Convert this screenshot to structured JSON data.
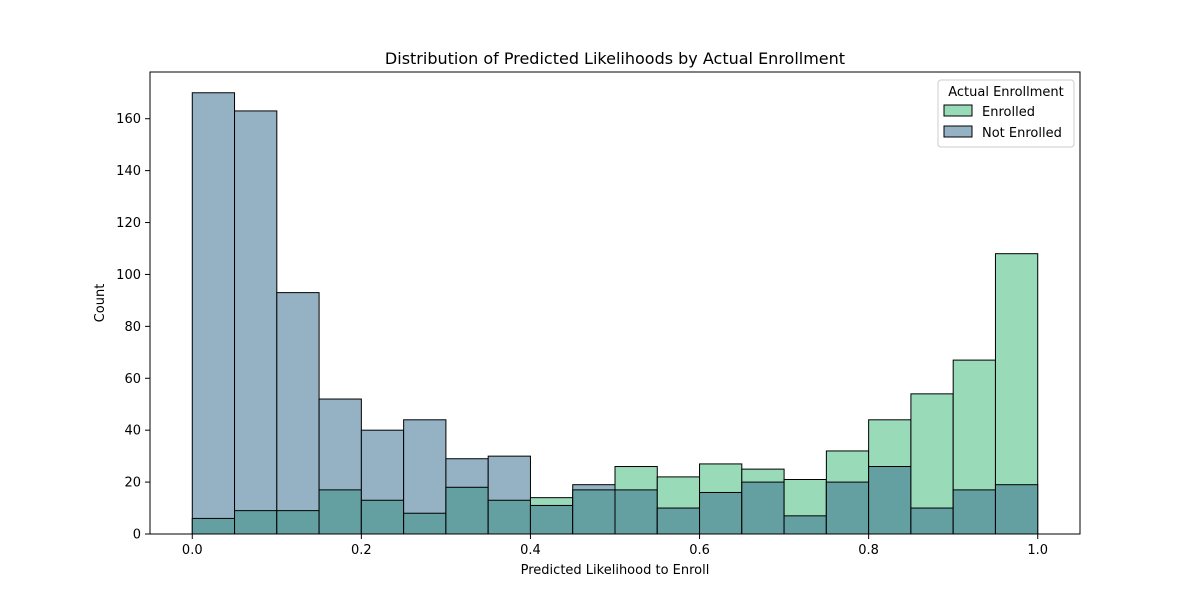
{
  "chart_data": {
    "type": "bar",
    "title": "Distribution of Predicted Likelihoods by Actual Enrollment",
    "xlabel": "Predicted Likelihood to Enroll",
    "ylabel": "Count",
    "xlim": [
      -0.05,
      1.05
    ],
    "ylim": [
      0,
      178
    ],
    "xticks": [
      0.0,
      0.2,
      0.4,
      0.6,
      0.8,
      1.0
    ],
    "xtick_labels": [
      "0.0",
      "0.2",
      "0.4",
      "0.6",
      "0.8",
      "1.0"
    ],
    "yticks": [
      0,
      20,
      40,
      60,
      80,
      100,
      120,
      140,
      160
    ],
    "ytick_labels": [
      "0",
      "20",
      "40",
      "60",
      "80",
      "100",
      "120",
      "140",
      "160"
    ],
    "bin_edges": [
      0.0,
      0.05,
      0.1,
      0.15,
      0.2,
      0.25,
      0.3,
      0.35,
      0.4,
      0.45,
      0.5,
      0.55,
      0.6,
      0.65,
      0.7,
      0.75,
      0.8,
      0.85,
      0.9,
      0.95,
      1.0
    ],
    "grid": false,
    "legend": {
      "title": "Actual Enrollment",
      "placement": "top-right"
    },
    "series": [
      {
        "name": "Not Enrolled",
        "color": "#95b2c5",
        "values": [
          170,
          163,
          93,
          52,
          40,
          44,
          29,
          30,
          11,
          19,
          17,
          10,
          16,
          20,
          7,
          20,
          26,
          10,
          17,
          19
        ]
      },
      {
        "name": "Enrolled",
        "color": "#99dab9",
        "values": [
          6,
          9,
          9,
          17,
          13,
          8,
          18,
          13,
          14,
          17,
          26,
          22,
          27,
          25,
          21,
          32,
          44,
          54,
          67,
          108
        ]
      }
    ],
    "overlap_color": "#64a0a2",
    "legend_order": [
      "Enrolled",
      "Not Enrolled"
    ]
  }
}
